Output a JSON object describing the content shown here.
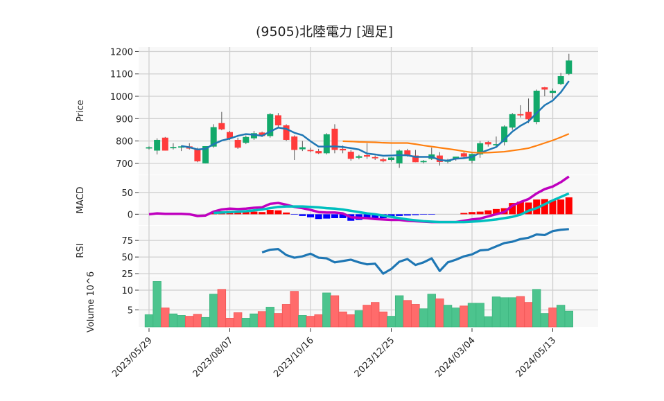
{
  "chart_data": {
    "type": "candlestick",
    "title": "(9505)北陸電力  [週足]",
    "x_tick_labels": [
      "2023/05/29",
      "2023/08/07",
      "2023/10/16",
      "2023/12/25",
      "2024/03/04",
      "2024/05/13"
    ],
    "x_tick_indices": [
      0,
      10,
      20,
      30,
      40,
      50
    ],
    "panels": {
      "price": {
        "ylabel": "Price",
        "ticks": [
          700,
          800,
          900,
          1000,
          1100,
          1200
        ],
        "ylim": [
          650,
          1220
        ]
      },
      "macd": {
        "ylabel": "MACD",
        "ticks": [
          0,
          50
        ],
        "ylim": [
          -25,
          90
        ]
      },
      "rsi": {
        "ylabel": "RSI",
        "ticks": [
          25,
          50,
          75
        ],
        "ylim": [
          22,
          97
        ]
      },
      "volume": {
        "ylabel": "Volume  10^6",
        "ylabel_main": "Volume",
        "ylabel_exp": "10",
        "ylabel_sup": "6",
        "ticks": [
          5,
          10
        ],
        "ylim": [
          0.7,
          13.5
        ]
      }
    },
    "ohlc": [
      [
        770,
        776,
        762,
        772
      ],
      [
        757,
        812,
        740,
        805
      ],
      [
        815,
        818,
        757,
        757
      ],
      [
        772,
        790,
        762,
        773
      ],
      [
        771,
        780,
        755,
        776
      ],
      [
        776,
        790,
        762,
        766
      ],
      [
        766,
        770,
        705,
        709
      ],
      [
        700,
        777,
        700,
        777
      ],
      [
        775,
        875,
        770,
        862
      ],
      [
        880,
        930,
        848,
        852
      ],
      [
        840,
        845,
        805,
        812
      ],
      [
        805,
        815,
        765,
        770
      ],
      [
        792,
        825,
        786,
        818
      ],
      [
        812,
        845,
        805,
        835
      ],
      [
        838,
        842,
        818,
        822
      ],
      [
        822,
        925,
        815,
        920
      ],
      [
        915,
        925,
        860,
        870
      ],
      [
        870,
        875,
        800,
        805
      ],
      [
        820,
        825,
        715,
        760
      ],
      [
        763,
        800,
        755,
        772
      ],
      [
        760,
        770,
        750,
        756
      ],
      [
        755,
        765,
        742,
        745
      ],
      [
        745,
        835,
        740,
        830
      ],
      [
        855,
        875,
        745,
        760
      ],
      [
        765,
        780,
        745,
        758
      ],
      [
        752,
        760,
        712,
        720
      ],
      [
        725,
        738,
        718,
        732
      ],
      [
        737,
        790,
        720,
        730
      ],
      [
        728,
        735,
        715,
        724
      ],
      [
        718,
        725,
        705,
        710
      ],
      [
        715,
        728,
        708,
        726
      ],
      [
        700,
        762,
        680,
        757
      ],
      [
        758,
        765,
        730,
        735
      ],
      [
        735,
        760,
        705,
        705
      ],
      [
        705,
        715,
        700,
        711
      ],
      [
        720,
        770,
        715,
        740
      ],
      [
        735,
        750,
        690,
        706
      ],
      [
        707,
        720,
        700,
        716
      ],
      [
        720,
        728,
        712,
        730
      ],
      [
        745,
        750,
        725,
        730
      ],
      [
        712,
        745,
        700,
        742
      ],
      [
        740,
        800,
        725,
        790
      ],
      [
        795,
        800,
        775,
        785
      ],
      [
        785,
        820,
        770,
        786
      ],
      [
        795,
        870,
        780,
        865
      ],
      [
        860,
        925,
        850,
        920
      ],
      [
        920,
        960,
        905,
        915
      ],
      [
        930,
        990,
        880,
        897
      ],
      [
        885,
        1030,
        875,
        1025
      ],
      [
        1040,
        1042,
        1000,
        1030
      ],
      [
        1015,
        1035,
        990,
        1025
      ],
      [
        1055,
        1105,
        1050,
        1090
      ],
      [
        1100,
        1190,
        1095,
        1160
      ]
    ],
    "ma_short": [
      null,
      null,
      null,
      null,
      778,
      772,
      762,
      765,
      786,
      802,
      811,
      823,
      831,
      828,
      823,
      842,
      860,
      854,
      837,
      826,
      799,
      775,
      775,
      776,
      773,
      768,
      762,
      744,
      740,
      734,
      735,
      737,
      736,
      729,
      729,
      729,
      715,
      712,
      721,
      723,
      729,
      747,
      760,
      773,
      806,
      842,
      868,
      888,
      925,
      960,
      981,
      1018,
      1068
    ],
    "ma_long": [
      null,
      null,
      null,
      null,
      null,
      null,
      null,
      null,
      null,
      null,
      null,
      null,
      null,
      null,
      null,
      null,
      null,
      null,
      null,
      null,
      null,
      null,
      null,
      null,
      799,
      798,
      796,
      795,
      794,
      792,
      791,
      791,
      791,
      786,
      780,
      775,
      770,
      765,
      760,
      754,
      749,
      747,
      748,
      750,
      752,
      757,
      762,
      768,
      779,
      791,
      803,
      817,
      832
    ],
    "macd": [
      0,
      2,
      1,
      1,
      1,
      0,
      -4,
      -3,
      6,
      11,
      13,
      12,
      13,
      15,
      16,
      24,
      26,
      22,
      17,
      14,
      10,
      5,
      4,
      4,
      2,
      -7,
      -8,
      -9,
      -11,
      -12,
      -13,
      -13,
      -15,
      -16,
      -17,
      -18,
      -18,
      -18,
      -18,
      -15,
      -12,
      -10,
      -5,
      0,
      5,
      20,
      28,
      35,
      48,
      58,
      64,
      74,
      87
    ],
    "signal": [
      null,
      null,
      null,
      null,
      null,
      null,
      null,
      null,
      3,
      4,
      5,
      6,
      7,
      9,
      11,
      14,
      17,
      18,
      18,
      18,
      17,
      16,
      14,
      13,
      11,
      8,
      5,
      2,
      0,
      -3,
      -6,
      -9,
      -12,
      -14,
      -16,
      -17,
      -18,
      -18,
      -18,
      -18,
      -17,
      -16,
      -14,
      -12,
      -9,
      -6,
      -1,
      8,
      14,
      23,
      32,
      40,
      48
    ],
    "rsi": [
      null,
      null,
      null,
      null,
      null,
      null,
      null,
      null,
      null,
      null,
      null,
      null,
      null,
      null,
      57,
      61,
      62,
      53,
      49,
      51,
      55,
      49,
      48,
      42,
      44,
      46,
      42,
      39,
      40,
      25,
      32,
      43,
      47,
      38,
      42,
      48,
      29,
      42,
      46,
      51,
      54,
      60,
      61,
      66,
      71,
      73,
      77,
      79,
      84,
      83,
      89,
      91,
      92
    ],
    "volume": [
      3.8,
      12.2,
      5.5,
      4.0,
      3.6,
      3.4,
      3.9,
      3.1,
      9.0,
      10.2,
      2.9,
      4.3,
      2.9,
      4.0,
      4.6,
      5.7,
      4.1,
      6.4,
      9.7,
      3.6,
      3.4,
      3.8,
      9.3,
      8.6,
      4.5,
      3.8,
      4.8,
      6.2,
      6.9,
      4.5,
      3.4,
      8.6,
      7.4,
      6.4,
      5.3,
      9.0,
      7.8,
      6.2,
      5.5,
      6.0,
      6.7,
      6.7,
      3.3,
      8.3,
      8.1,
      8.1,
      8.4,
      6.9,
      10.2,
      4.1,
      5.5,
      6.2,
      4.7
    ],
    "volume_up": [
      1,
      1,
      0,
      1,
      1,
      0,
      0,
      1,
      1,
      0,
      0,
      0,
      1,
      1,
      0,
      1,
      0,
      0,
      0,
      1,
      0,
      0,
      1,
      0,
      0,
      0,
      1,
      0,
      0,
      0,
      1,
      1,
      0,
      0,
      1,
      1,
      0,
      1,
      1,
      0,
      1,
      1,
      1,
      1,
      1,
      1,
      0,
      0,
      1,
      1,
      0,
      1,
      1
    ],
    "colors": {
      "up": "#12a96a",
      "down": "#ff3b3b",
      "vol_up": "#4cc48e",
      "vol_down": "#ff6b6b",
      "ma_short": "#1f77b4",
      "ma_long": "#ff7f0e",
      "macd": "#bf00bf",
      "signal": "#00bfbf",
      "hist_pos": "#ff0000",
      "hist_neg": "#0000ff",
      "rsi": "#1f77b4"
    }
  }
}
